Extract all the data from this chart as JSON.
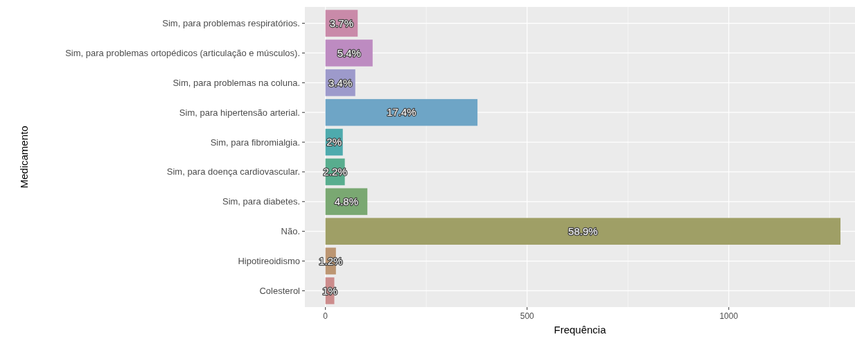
{
  "chart_data": {
    "type": "bar",
    "orientation": "horizontal",
    "xlabel": "Frequência",
    "ylabel": "Medicamento",
    "categories": [
      "Sim, para problemas respiratórios.",
      "Sim, para problemas ortopédicos (articulação e músculos).",
      "Sim, para problemas na coluna.",
      "Sim, para hipertensão arterial.",
      "Sim, para fibromialgia.",
      "Sim, para doença cardiovascular.",
      "Sim, para diabetes.",
      "Não.",
      "Hipotireoidismo",
      "Colesterol"
    ],
    "values": [
      80,
      117,
      74,
      377,
      43,
      48,
      104,
      1277,
      26,
      22
    ],
    "colors": [
      "#c98aa9",
      "#bd8bc1",
      "#9d9acb",
      "#6ea5c6",
      "#4eaaad",
      "#58ad8e",
      "#7aa872",
      "#9f9f66",
      "#bc9672",
      "#cc8c8c"
    ],
    "annotations": [
      {
        "text": "3.7%",
        "x": 40,
        "y": "Sim, para problemas respiratórios."
      },
      {
        "text": "5.4%",
        "x": 58.5,
        "y": "Sim, para problemas ortopédicos (articulação e músculos)."
      },
      {
        "text": "3.4%",
        "x": 37,
        "y": "Sim, para problemas na coluna."
      },
      {
        "text": "17.4%",
        "x": 188.5,
        "y": "Sim, para hipertensão arterial."
      },
      {
        "text": "2%",
        "x": 21.5,
        "y": "Sim, para fibromialgia."
      },
      {
        "text": "2.2%",
        "x": 24,
        "y": "Sim, para doença cardiovascular."
      },
      {
        "text": "4.8%",
        "x": 52,
        "y": "Sim, para diabetes."
      },
      {
        "text": "58.9%",
        "x": 638.5,
        "y": "Não."
      },
      {
        "text": "1.2%",
        "x": 13,
        "y": "Hipotireoidismo"
      },
      {
        "text": "1%",
        "x": 11,
        "y": "Colesterol"
      }
    ],
    "xlim": [
      -51,
      1313
    ],
    "xticks": [
      0,
      500,
      1000
    ],
    "grid": true
  }
}
